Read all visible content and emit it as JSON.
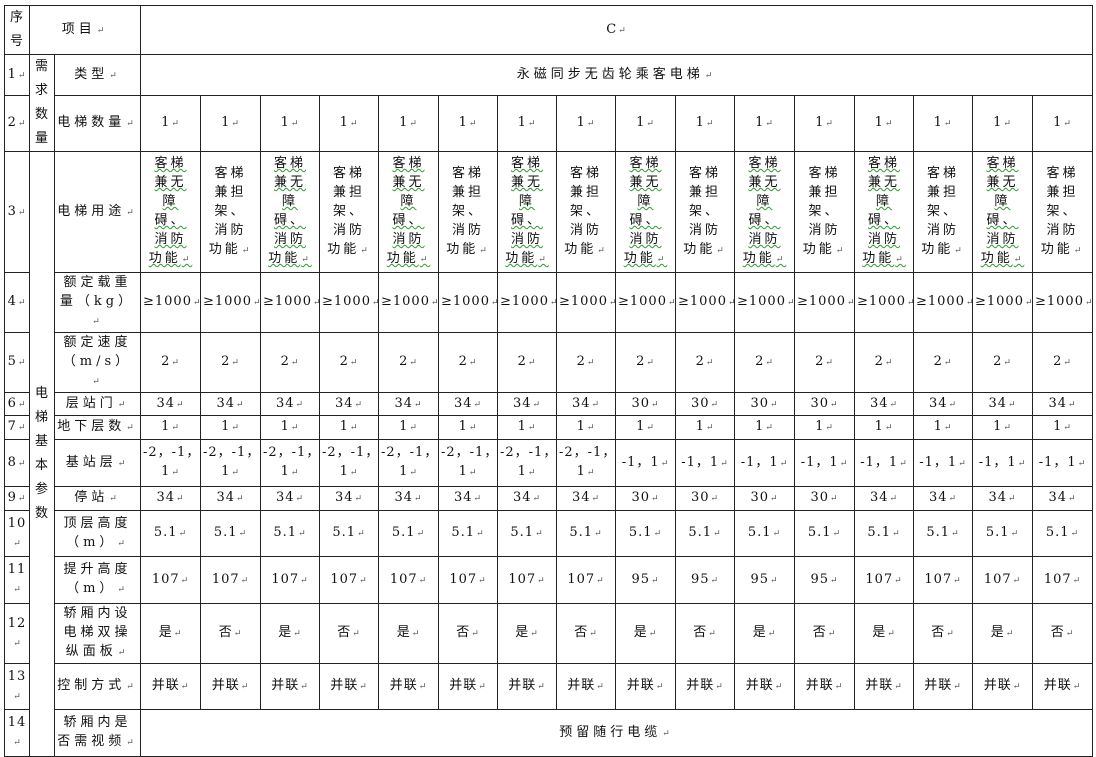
{
  "header": {
    "seq": "序号",
    "item": "项目",
    "model": "C"
  },
  "groups": {
    "demand": "需求数量",
    "basic": "电梯基本参数"
  },
  "rows": [
    {
      "no": "1",
      "label": "类型",
      "span": "永磁同步无齿轮乘客电梯"
    },
    {
      "no": "2",
      "label": "电梯数量",
      "values": [
        "1",
        "1",
        "1",
        "1",
        "1",
        "1",
        "1",
        "1",
        "1",
        "1",
        "1",
        "1",
        "1",
        "1",
        "1",
        "1"
      ]
    },
    {
      "no": "3",
      "label": "电梯用途",
      "values": [
        "客梯兼无障碍、消防功能",
        "客梯兼担架、消防功能",
        "客梯兼无障碍、消防功能",
        "客梯兼担架、消防功能",
        "客梯兼无障碍、消防功能",
        "客梯兼担架、消防功能",
        "客梯兼无障碍、消防功能",
        "客梯兼担架、消防功能",
        "客梯兼无障碍、消防功能",
        "客梯兼担架、消防功能",
        "客梯兼无障碍、消防功能",
        "客梯兼担架、消防功能",
        "客梯兼无障碍、消防功能",
        "客梯兼担架、消防功能",
        "客梯兼无障碍、消防功能",
        "客梯兼担架、消防功能"
      ]
    },
    {
      "no": "4",
      "label": "额定载重量（kg）",
      "values": [
        "≥1000",
        "≥1000",
        "≥1000",
        "≥1000",
        "≥1000",
        "≥1000",
        "≥1000",
        "≥1000",
        "≥1000",
        "≥1000",
        "≥1000",
        "≥1000",
        "≥1000",
        "≥1000",
        "≥1000",
        "≥1000"
      ]
    },
    {
      "no": "5",
      "label": "额定速度（m/s）",
      "values": [
        "2",
        "2",
        "2",
        "2",
        "2",
        "2",
        "2",
        "2",
        "2",
        "2",
        "2",
        "2",
        "2",
        "2",
        "2",
        "2"
      ]
    },
    {
      "no": "6",
      "label": "层站门",
      "values": [
        "34",
        "34",
        "34",
        "34",
        "34",
        "34",
        "34",
        "34",
        "30",
        "30",
        "30",
        "30",
        "34",
        "34",
        "34",
        "34"
      ]
    },
    {
      "no": "7",
      "label": "地下层数",
      "values": [
        "1",
        "1",
        "1",
        "1",
        "1",
        "1",
        "1",
        "1",
        "1",
        "1",
        "1",
        "1",
        "1",
        "1",
        "1",
        "1"
      ]
    },
    {
      "no": "8",
      "label": "基站层",
      "values": [
        "-2，-1，1",
        "-2，-1，1",
        "-2，-1，1",
        "-2，-1，1",
        "-2，-1，1",
        "-2，-1，1",
        "-2，-1，1",
        "-2，-1，1",
        "-1，1",
        "-1，1",
        "-1，1",
        "-1，1",
        "-1，1",
        "-1，1",
        "-1，1",
        "-1，1"
      ]
    },
    {
      "no": "9",
      "label": "停站",
      "values": [
        "34",
        "34",
        "34",
        "34",
        "34",
        "34",
        "34",
        "34",
        "30",
        "30",
        "30",
        "30",
        "34",
        "34",
        "34",
        "34"
      ]
    },
    {
      "no": "10",
      "label": "顶层高度（m）",
      "values": [
        "5.1",
        "5.1",
        "5.1",
        "5.1",
        "5.1",
        "5.1",
        "5.1",
        "5.1",
        "5.1",
        "5.1",
        "5.1",
        "5.1",
        "5.1",
        "5.1",
        "5.1",
        "5.1"
      ]
    },
    {
      "no": "11",
      "label": "提升高度（m）",
      "values": [
        "107",
        "107",
        "107",
        "107",
        "107",
        "107",
        "107",
        "107",
        "95",
        "95",
        "95",
        "95",
        "107",
        "107",
        "107",
        "107"
      ]
    },
    {
      "no": "12",
      "label": "轿厢内设电梯双操纵面板",
      "values": [
        "是",
        "否",
        "是",
        "否",
        "是",
        "否",
        "是",
        "否",
        "是",
        "否",
        "是",
        "否",
        "是",
        "否",
        "是",
        "否"
      ]
    },
    {
      "no": "13",
      "label": "控制方式",
      "values": [
        "并联",
        "并联",
        "并联",
        "并联",
        "并联",
        "并联",
        "并联",
        "并联",
        "并联",
        "并联",
        "并联",
        "并联",
        "并联",
        "并联",
        "并联",
        "并联"
      ]
    },
    {
      "no": "14",
      "label": "轿厢内是否需视频",
      "span": "预留随行电缆"
    }
  ]
}
